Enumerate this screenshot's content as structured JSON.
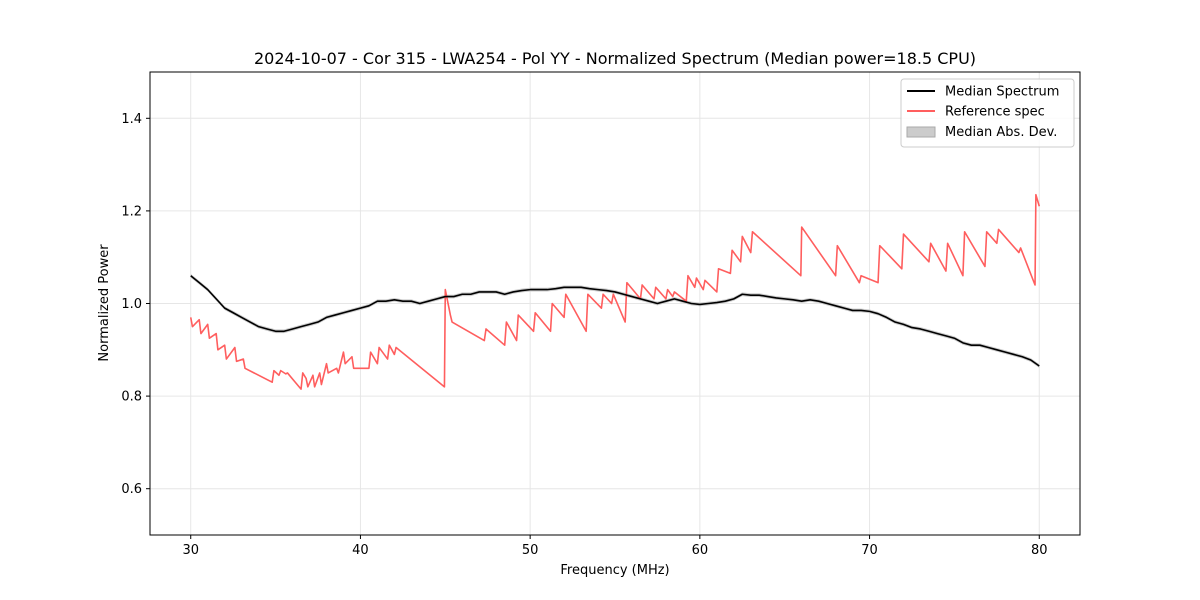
{
  "chart_data": {
    "type": "line",
    "title": "2024-10-07 - Cor 315 - LWA254 - Pol YY - Normalized Spectrum (Median power=18.5 CPU)",
    "xlabel": "Frequency (MHz)",
    "ylabel": "Normalized Power",
    "xlim": [
      27.6,
      82.4
    ],
    "ylim": [
      0.5,
      1.5
    ],
    "xticks": [
      30,
      40,
      50,
      60,
      70,
      80
    ],
    "yticks": [
      0.6,
      0.8,
      1.0,
      1.2,
      1.4
    ],
    "xtick_labels": [
      "30",
      "40",
      "50",
      "60",
      "70",
      "80"
    ],
    "ytick_labels": [
      "0.6",
      "0.8",
      "1.0",
      "1.2",
      "1.4"
    ],
    "grid": true,
    "legend_position": "top-right",
    "legend": [
      "Median Spectrum",
      "Reference spec",
      "Median Abs. Dev."
    ],
    "series": [
      {
        "name": "Median Spectrum",
        "color": "#000000",
        "x": [
          30,
          30.5,
          31,
          31.5,
          32,
          32.5,
          33,
          33.5,
          34,
          34.5,
          35,
          35.5,
          36,
          36.5,
          37,
          37.5,
          38,
          38.5,
          39,
          39.5,
          40,
          40.5,
          41,
          41.5,
          42,
          42.5,
          43,
          43.5,
          44,
          44.5,
          45,
          45.5,
          46,
          46.5,
          47,
          47.5,
          48,
          48.5,
          49,
          49.5,
          50,
          50.5,
          51,
          51.5,
          52,
          52.5,
          53,
          53.5,
          54,
          54.5,
          55,
          55.5,
          56,
          56.5,
          57,
          57.5,
          58,
          58.5,
          59,
          59.5,
          60,
          60.5,
          61,
          61.5,
          62,
          62.5,
          63,
          63.5,
          64,
          64.5,
          65,
          65.5,
          66,
          66.5,
          67,
          67.5,
          68,
          68.5,
          69,
          69.5,
          70,
          70.5,
          71,
          71.5,
          72,
          72.5,
          73,
          73.5,
          74,
          74.5,
          75,
          75.5,
          76,
          76.5,
          77,
          77.5,
          78,
          78.5,
          79,
          79.5,
          80
        ],
        "y": [
          1.06,
          1.045,
          1.03,
          1.01,
          0.99,
          0.98,
          0.97,
          0.96,
          0.95,
          0.945,
          0.94,
          0.94,
          0.945,
          0.95,
          0.955,
          0.96,
          0.97,
          0.975,
          0.98,
          0.985,
          0.99,
          0.995,
          1.005,
          1.005,
          1.008,
          1.005,
          1.005,
          1.0,
          1.005,
          1.01,
          1.015,
          1.015,
          1.02,
          1.02,
          1.025,
          1.025,
          1.025,
          1.02,
          1.025,
          1.028,
          1.03,
          1.03,
          1.03,
          1.032,
          1.035,
          1.035,
          1.035,
          1.032,
          1.03,
          1.028,
          1.025,
          1.02,
          1.015,
          1.01,
          1.005,
          1.0,
          1.005,
          1.01,
          1.005,
          1.0,
          0.998,
          1.0,
          1.002,
          1.005,
          1.01,
          1.02,
          1.018,
          1.018,
          1.015,
          1.012,
          1.01,
          1.008,
          1.005,
          1.008,
          1.005,
          1.0,
          0.995,
          0.99,
          0.985,
          0.985,
          0.983,
          0.978,
          0.97,
          0.96,
          0.955,
          0.948,
          0.945,
          0.94,
          0.935,
          0.93,
          0.925,
          0.915,
          0.91,
          0.91,
          0.905,
          0.9,
          0.895,
          0.89,
          0.885,
          0.878,
          0.865
        ]
      },
      {
        "name": "Reference spec",
        "color": "#ff5e5e",
        "x": [
          30,
          30.1,
          30.5,
          30.6,
          31,
          31.1,
          31.5,
          31.6,
          32,
          32.1,
          32.6,
          32.7,
          33.1,
          33.2,
          34.8,
          34.9,
          35.2,
          35.3,
          35.6,
          35.7,
          36.5,
          36.6,
          36.8,
          36.9,
          37.2,
          37.3,
          37.6,
          37.7,
          38,
          38.1,
          38.6,
          38.7,
          39,
          39.1,
          39.5,
          39.6,
          40.5,
          40.6,
          41,
          41.1,
          41.6,
          41.7,
          42,
          42.1,
          44.95,
          45.0,
          45.3,
          45.4,
          47.3,
          47.4,
          48.5,
          48.6,
          49.2,
          49.3,
          50.2,
          50.3,
          51.2,
          51.3,
          52.0,
          52.1,
          53.3,
          53.4,
          54.2,
          54.3,
          54.8,
          54.9,
          55.6,
          55.7,
          56.5,
          56.6,
          57.3,
          57.4,
          58.0,
          58.1,
          58.4,
          58.5,
          59.2,
          59.3,
          59.7,
          59.8,
          60.2,
          60.3,
          61.0,
          61.1,
          61.8,
          61.9,
          62.4,
          62.5,
          63.0,
          63.1,
          65.95,
          66.0,
          68.0,
          68.1,
          69.4,
          69.5,
          70.5,
          70.6,
          71.9,
          72.0,
          73.5,
          73.6,
          74.5,
          74.6,
          75.5,
          75.6,
          76.8,
          76.9,
          77.5,
          77.6,
          78.8,
          78.9,
          79.75,
          79.8,
          80
        ],
        "y": [
          0.97,
          0.95,
          0.965,
          0.935,
          0.955,
          0.925,
          0.935,
          0.9,
          0.91,
          0.88,
          0.905,
          0.875,
          0.88,
          0.86,
          0.83,
          0.855,
          0.845,
          0.855,
          0.848,
          0.85,
          0.815,
          0.85,
          0.838,
          0.82,
          0.845,
          0.82,
          0.85,
          0.825,
          0.87,
          0.85,
          0.86,
          0.85,
          0.895,
          0.87,
          0.885,
          0.86,
          0.86,
          0.895,
          0.87,
          0.905,
          0.88,
          0.91,
          0.89,
          0.905,
          0.82,
          1.03,
          0.975,
          0.96,
          0.92,
          0.945,
          0.91,
          0.96,
          0.92,
          0.975,
          0.94,
          0.98,
          0.94,
          1.0,
          0.97,
          1.02,
          0.94,
          1.02,
          0.99,
          1.02,
          1.0,
          1.02,
          0.96,
          1.045,
          1.01,
          1.04,
          1.01,
          1.035,
          1.01,
          1.03,
          1.015,
          1.025,
          1.005,
          1.06,
          1.035,
          1.055,
          1.03,
          1.05,
          1.025,
          1.075,
          1.065,
          1.115,
          1.09,
          1.145,
          1.11,
          1.155,
          1.06,
          1.165,
          1.06,
          1.125,
          1.045,
          1.06,
          1.045,
          1.125,
          1.075,
          1.15,
          1.09,
          1.13,
          1.07,
          1.13,
          1.06,
          1.155,
          1.08,
          1.155,
          1.13,
          1.16,
          1.11,
          1.12,
          1.04,
          1.235,
          1.21
        ]
      }
    ]
  }
}
